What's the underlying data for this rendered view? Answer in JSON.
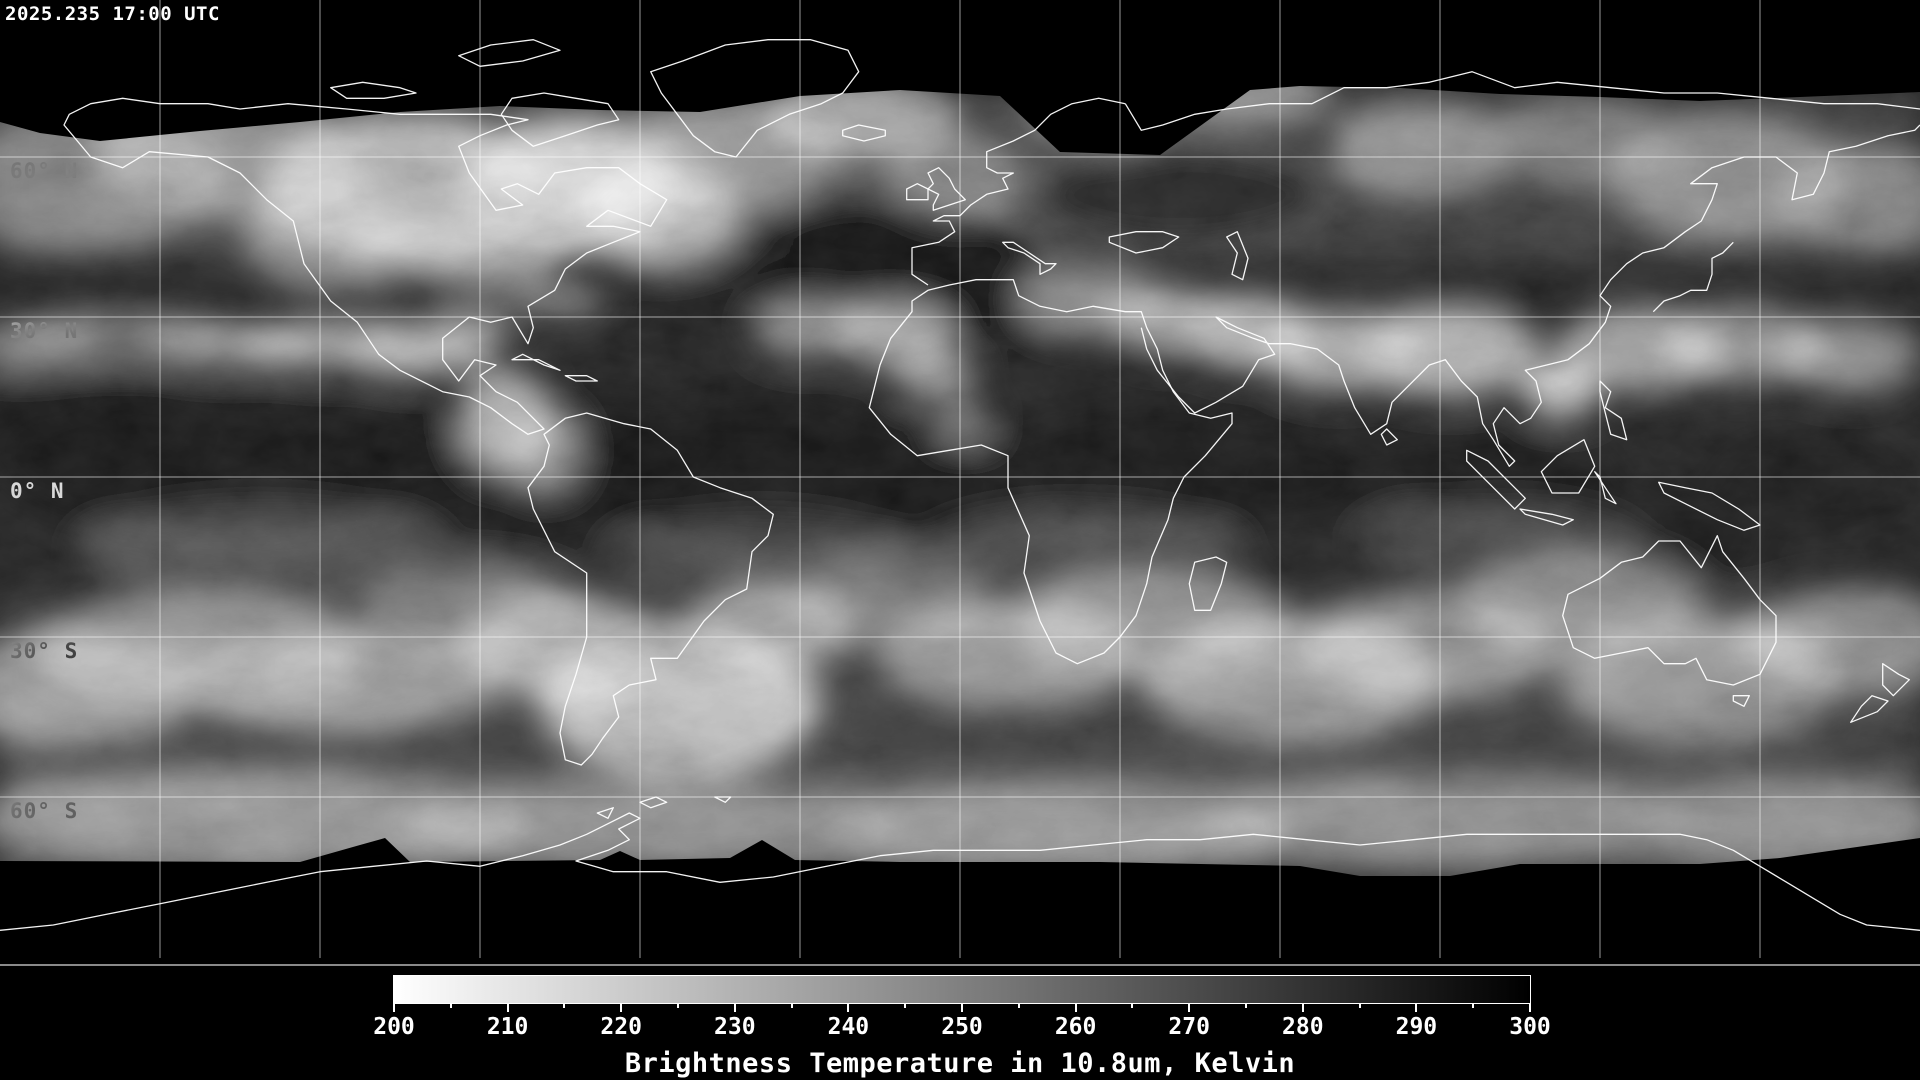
{
  "map": {
    "timestamp": "2025.235 17:00 UTC",
    "latitude_labels": [
      "60° N",
      "30° N",
      "0° N",
      "30° S",
      "60° S"
    ]
  },
  "colorbar": {
    "title": "Brightness Temperature in 10.8um, Kelvin",
    "tick_labels": [
      "200",
      "210",
      "220",
      "230",
      "240",
      "250",
      "260",
      "270",
      "280",
      "290",
      "300"
    ],
    "min_kelvin": 200,
    "max_kelvin": 300,
    "gradient_left_color": "#ffffff",
    "gradient_right_color": "#000000"
  },
  "colors": {
    "background": "#000000",
    "coastline": "#ffffff",
    "graticule": "#ffffff",
    "text": "#ffffff",
    "separator": "#8a8a8a"
  }
}
